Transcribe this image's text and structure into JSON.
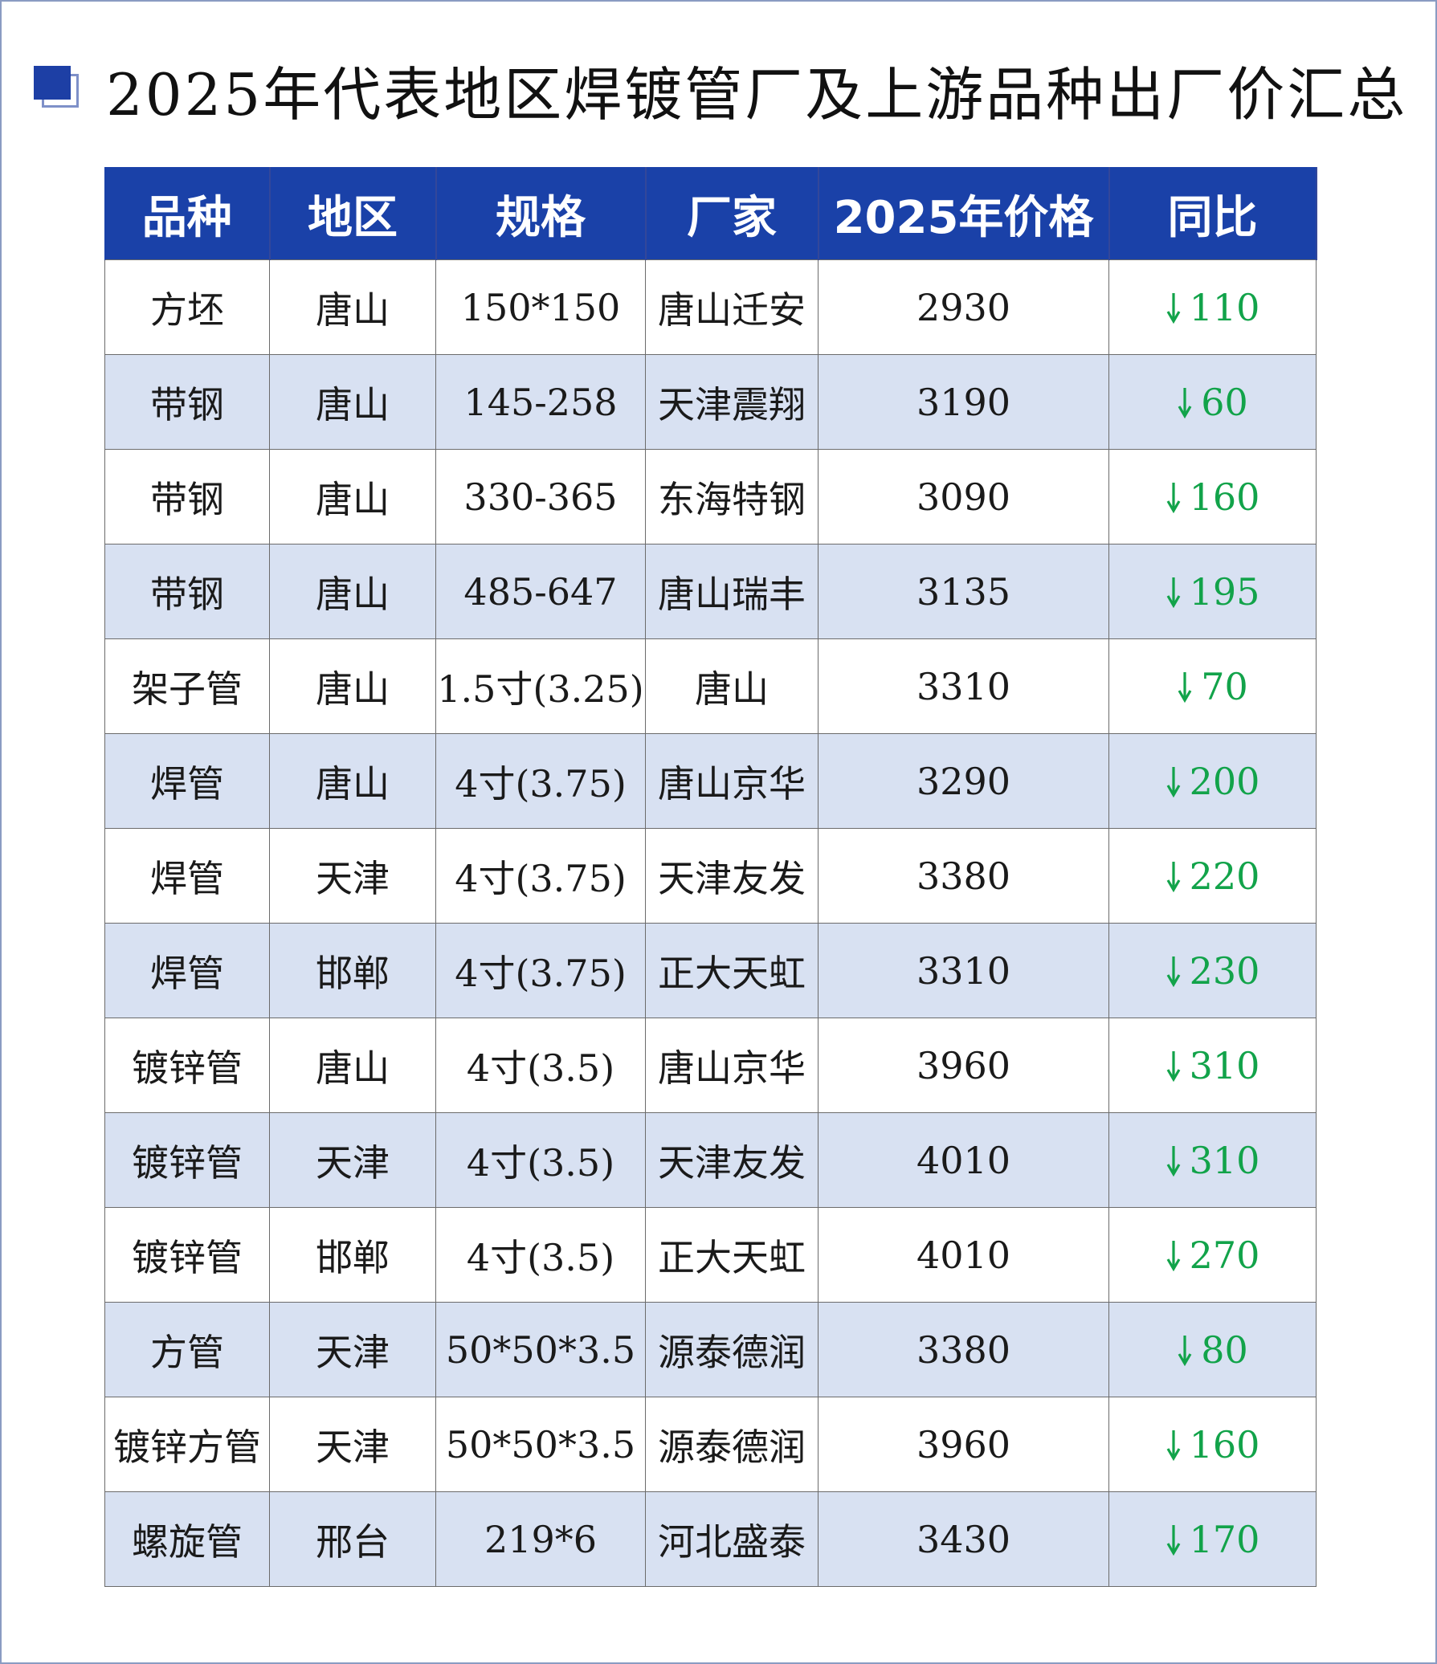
{
  "title": "2025年代表地区焊镀管厂及上游品种出厂价汇总",
  "table": {
    "headers": [
      "品种",
      "地区",
      "规格",
      "厂家",
      "2025年价格",
      "同比"
    ],
    "rows": [
      {
        "variety": "方坯",
        "region": "唐山",
        "spec": "150*150",
        "mill": "唐山迁安",
        "price": "2930",
        "yoy": "110",
        "yoy_dir": "down"
      },
      {
        "variety": "带钢",
        "region": "唐山",
        "spec": "145-258",
        "mill": "天津震翔",
        "price": "3190",
        "yoy": "60",
        "yoy_dir": "down"
      },
      {
        "variety": "带钢",
        "region": "唐山",
        "spec": "330-365",
        "mill": "东海特钢",
        "price": "3090",
        "yoy": "160",
        "yoy_dir": "down"
      },
      {
        "variety": "带钢",
        "region": "唐山",
        "spec": "485-647",
        "mill": "唐山瑞丰",
        "price": "3135",
        "yoy": "195",
        "yoy_dir": "down"
      },
      {
        "variety": "架子管",
        "region": "唐山",
        "spec": "1.5寸(3.25)",
        "mill": "唐山",
        "price": "3310",
        "yoy": "70",
        "yoy_dir": "down"
      },
      {
        "variety": "焊管",
        "region": "唐山",
        "spec": "4寸(3.75)",
        "mill": "唐山京华",
        "price": "3290",
        "yoy": "200",
        "yoy_dir": "down"
      },
      {
        "variety": "焊管",
        "region": "天津",
        "spec": "4寸(3.75)",
        "mill": "天津友发",
        "price": "3380",
        "yoy": "220",
        "yoy_dir": "down"
      },
      {
        "variety": "焊管",
        "region": "邯郸",
        "spec": "4寸(3.75)",
        "mill": "正大天虹",
        "price": "3310",
        "yoy": "230",
        "yoy_dir": "down"
      },
      {
        "variety": "镀锌管",
        "region": "唐山",
        "spec": "4寸(3.5)",
        "mill": "唐山京华",
        "price": "3960",
        "yoy": "310",
        "yoy_dir": "down"
      },
      {
        "variety": "镀锌管",
        "region": "天津",
        "spec": "4寸(3.5)",
        "mill": "天津友发",
        "price": "4010",
        "yoy": "310",
        "yoy_dir": "down"
      },
      {
        "variety": "镀锌管",
        "region": "邯郸",
        "spec": "4寸(3.5)",
        "mill": "正大天虹",
        "price": "4010",
        "yoy": "270",
        "yoy_dir": "down"
      },
      {
        "variety": "方管",
        "region": "天津",
        "spec": "50*50*3.5",
        "mill": "源泰德润",
        "price": "3380",
        "yoy": "80",
        "yoy_dir": "down"
      },
      {
        "variety": "镀锌方管",
        "region": "天津",
        "spec": "50*50*3.5",
        "mill": "源泰德润",
        "price": "3960",
        "yoy": "160",
        "yoy_dir": "down"
      },
      {
        "variety": "螺旋管",
        "region": "邢台",
        "spec": "219*6",
        "mill": "河北盛泰",
        "price": "3430",
        "yoy": "170",
        "yoy_dir": "down"
      }
    ]
  },
  "colors": {
    "header_bg": "#1a41a8",
    "alt_row_bg": "#d8e1f2",
    "yoy_text": "#12a34a",
    "icon": "#1d3fa5"
  }
}
